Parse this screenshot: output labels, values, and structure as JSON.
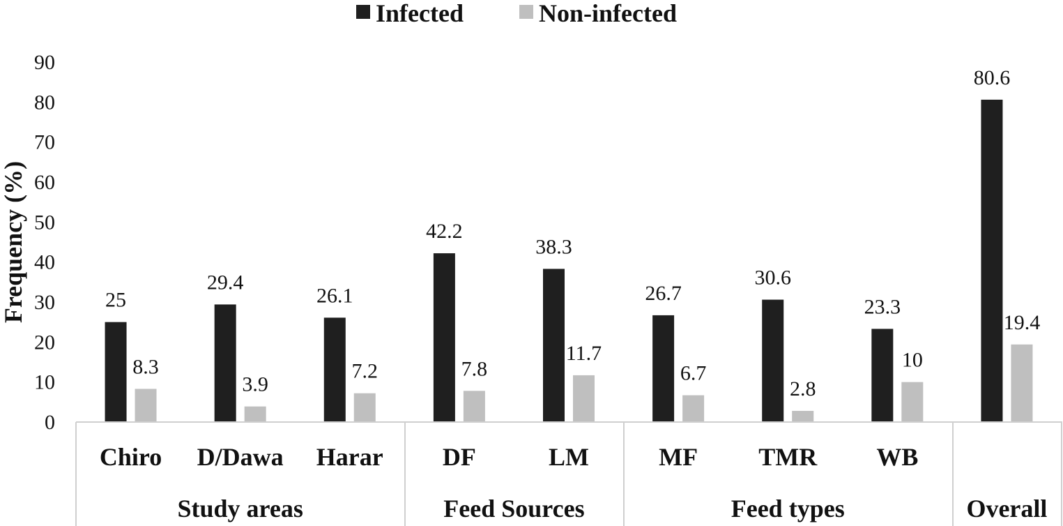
{
  "chart_data": {
    "type": "bar",
    "title": "",
    "xlabel": "",
    "ylabel": "Frequency (%)",
    "ylim": [
      0,
      90
    ],
    "yticks": [
      "0",
      "10",
      "20",
      "30",
      "40",
      "50",
      "60",
      "70",
      "80",
      "90"
    ],
    "grid": false,
    "legend_position": "top-center",
    "categories": [
      "Chiro",
      "D/Dawa",
      "Harar",
      "DF",
      "LM",
      "MF",
      "TMR",
      "WB",
      ""
    ],
    "groups": [
      {
        "label": "Study areas",
        "categories": [
          "Chiro",
          "D/Dawa",
          "Harar"
        ]
      },
      {
        "label": "Feed Sources",
        "categories": [
          "DF",
          "LM"
        ]
      },
      {
        "label": "Feed types",
        "categories": [
          "MF",
          "TMR",
          "WB"
        ]
      },
      {
        "label": "Overall",
        "categories": [
          ""
        ]
      }
    ],
    "series": [
      {
        "name": "Infected",
        "color": "#1f1f1f",
        "values": [
          25,
          29.4,
          26.1,
          42.2,
          38.3,
          26.7,
          30.6,
          23.3,
          80.6
        ],
        "labels": [
          "25",
          "29.4",
          "26.1",
          "42.2",
          "38.3",
          "26.7",
          "30.6",
          "23.3",
          "80.6"
        ]
      },
      {
        "name": "Non-infected",
        "color": "#bfbfbf",
        "values": [
          8.3,
          3.9,
          7.2,
          7.8,
          11.7,
          6.7,
          2.8,
          10,
          19.4
        ],
        "labels": [
          "8.3",
          "3.9",
          "7.2",
          "7.8",
          "11.7",
          "6.7",
          "2.8",
          "10",
          "19.4"
        ]
      }
    ]
  }
}
